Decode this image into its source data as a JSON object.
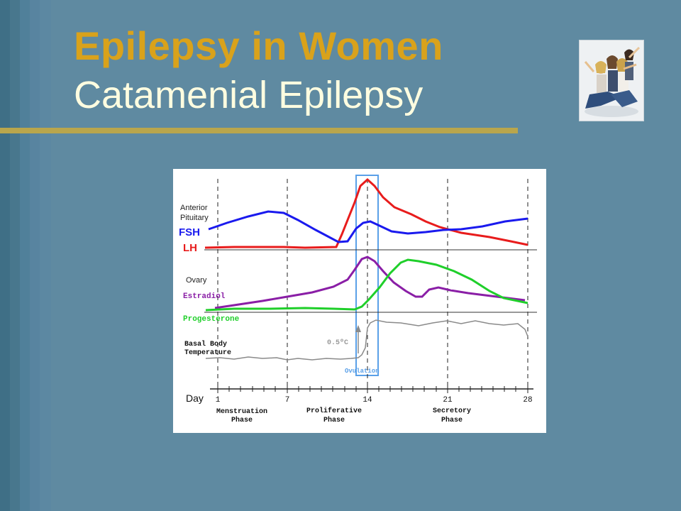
{
  "slide": {
    "title_line1": "Epilepsy in Women",
    "title_line2": "Catamenial Epilepsy",
    "colors": {
      "background": "#5f8aa1",
      "title_gold": "#d9a21b",
      "title_cream": "#fffde0",
      "rule": "#b9a64c"
    }
  },
  "photo": {
    "icon": "group-of-women-photo"
  },
  "chart": {
    "section_anterior": "Anterior",
    "section_pituitary": "Pituitary",
    "fsh_label": "FSH",
    "lh_label": "LH",
    "section_ovary": "Ovary",
    "estradiol_label": "Estradiol",
    "progesterone_label": "Progesterone",
    "bbt_line1": "Basal Body",
    "bbt_line2": "Temperature",
    "temp_rise_label": "0.5ºC",
    "ovulation_label": "Ovulation",
    "day_label": "Day",
    "day_ticks": [
      "1",
      "7",
      "14",
      "21",
      "28"
    ],
    "phases": [
      {
        "line1": "Menstruation",
        "line2": "Phase"
      },
      {
        "line1": "Proliferative",
        "line2": "Phase"
      },
      {
        "line1": "Secretory",
        "line2": "Phase"
      }
    ],
    "colors": {
      "fsh": "#1a1aee",
      "lh": "#e81c1c",
      "estradiol": "#8a1ea6",
      "progesterone": "#1fcf2a",
      "bbt": "#8a8a8a",
      "ovulation": "#5aa0e8"
    }
  }
}
